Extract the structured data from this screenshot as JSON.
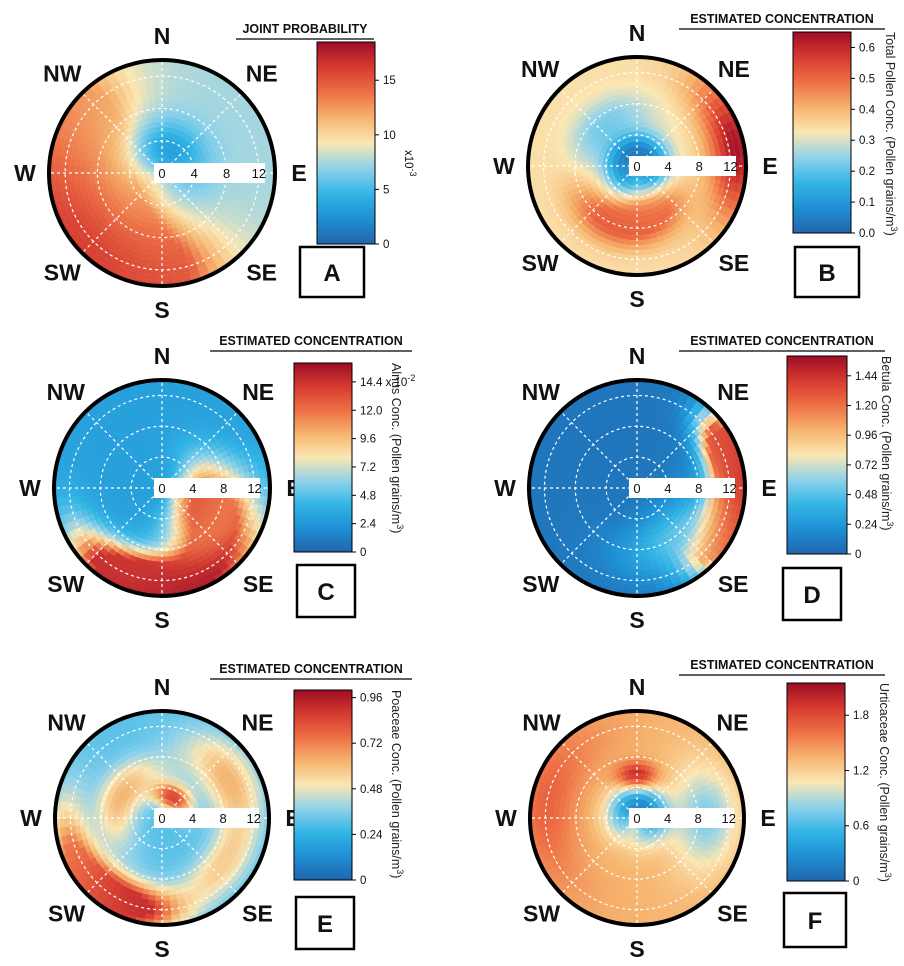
{
  "figure": {
    "panel_letters": [
      "A",
      "B",
      "C",
      "D",
      "E",
      "F"
    ]
  },
  "colormap": [
    "#2166ac",
    "#1f8fd4",
    "#33b5e5",
    "#8fd2ea",
    "#fbe7b4",
    "#f6b46e",
    "#ee7045",
    "#d63a30",
    "#9e0d26"
  ],
  "chart_data": [
    {
      "type": "heatmap",
      "subtype": "polar",
      "panel": "A",
      "title": "JOINT PROBABILITY",
      "colorbar_label": "",
      "multiplier_label": "x10",
      "multiplier_exp": "-3",
      "colorbar_ticks": [
        "0",
        "5",
        "10",
        "15"
      ],
      "colorbar_tick_values": [
        0,
        5,
        10,
        15
      ],
      "cmax": 18.5,
      "compass": {
        "N": "N",
        "NE": "NE",
        "E": "E",
        "SE": "SE",
        "S": "S",
        "SW": "SW",
        "W": "W",
        "NW": "NW"
      },
      "radial_ticks": [
        "0",
        "4",
        "8",
        "12"
      ],
      "radial_max": 14,
      "background_value": 0.4,
      "hotspots": [
        {
          "dir_deg": 225,
          "r": 13,
          "value": 0.97,
          "spread_deg": 38,
          "spread_r": 4.5
        },
        {
          "dir_deg": 265,
          "r": 12.5,
          "value": 0.82,
          "spread_deg": 35,
          "spread_r": 4
        },
        {
          "dir_deg": 190,
          "r": 12,
          "value": 0.74,
          "spread_deg": 30,
          "spread_r": 4
        },
        {
          "dir_deg": 240,
          "r": 6,
          "value": 0.62,
          "spread_deg": 45,
          "spread_r": 3
        },
        {
          "dir_deg": 300,
          "r": 11,
          "value": 0.58,
          "spread_deg": 30,
          "spread_r": 4
        },
        {
          "dir_deg": 20,
          "r": 3,
          "value": 0.18,
          "spread_deg": 60,
          "spread_r": 2.5
        }
      ]
    },
    {
      "type": "heatmap",
      "subtype": "polar",
      "panel": "B",
      "title": "ESTIMATED CONCENTRATION",
      "colorbar_label": "Total Pollen Conc. (Pollen grains/m",
      "colorbar_label_sup": "3",
      "colorbar_label_end": ")",
      "colorbar_ticks": [
        "0.0",
        "0.1",
        "0.2",
        "0.3",
        "0.4",
        "0.5",
        "0.6"
      ],
      "colorbar_tick_values": [
        0,
        0.1,
        0.2,
        0.3,
        0.4,
        0.5,
        0.6
      ],
      "cmax": 0.65,
      "compass": {
        "N": "N",
        "NE": "NE",
        "E": "E",
        "SE": "SE",
        "S": "S",
        "SW": "SW",
        "W": "W",
        "NW": "NW"
      },
      "radial_ticks": [
        "0",
        "4",
        "8",
        "12"
      ],
      "radial_max": 14,
      "background_value": 0.52,
      "hotspots": [
        {
          "dir_deg": 80,
          "r": 13,
          "value": 0.98,
          "spread_deg": 28,
          "spread_r": 2.5
        },
        {
          "dir_deg": 205,
          "r": 8,
          "value": 0.8,
          "spread_deg": 35,
          "spread_r": 2
        },
        {
          "dir_deg": 160,
          "r": 6,
          "value": 0.75,
          "spread_deg": 30,
          "spread_r": 2
        },
        {
          "dir_deg": 0,
          "r": 1.5,
          "value": 0.05,
          "spread_deg": 180,
          "spread_r": 2
        },
        {
          "dir_deg": 320,
          "r": 7,
          "value": 0.35,
          "spread_deg": 40,
          "spread_r": 2
        }
      ]
    },
    {
      "type": "heatmap",
      "subtype": "polar",
      "panel": "C",
      "title": "ESTIMATED CONCENTRATION",
      "colorbar_label": "Alnus Conc. (Pollen grains/m",
      "colorbar_label_sup": "3",
      "colorbar_label_end": ")",
      "colorbar_ticks": [
        "0",
        "2.4",
        "4.8",
        "7.2",
        "9.6",
        "12.0",
        "14.4 x 10"
      ],
      "colorbar_tick_values": [
        0,
        2.4,
        4.8,
        7.2,
        9.6,
        12.0,
        14.4
      ],
      "top_tick_exp": "-2",
      "cmax": 16,
      "compass": {
        "N": "N",
        "NE": "NE",
        "E": "E",
        "SE": "SE",
        "S": "S",
        "SW": "SW",
        "W": "W",
        "NW": "NW"
      },
      "radial_ticks": [
        "0",
        "4",
        "8",
        "12"
      ],
      "radial_max": 14,
      "background_value": 0.18,
      "hotspots": [
        {
          "dir_deg": 170,
          "r": 13,
          "value": 0.98,
          "spread_deg": 40,
          "spread_r": 2.5
        },
        {
          "dir_deg": 200,
          "r": 12,
          "value": 0.85,
          "spread_deg": 25,
          "spread_r": 2
        },
        {
          "dir_deg": 110,
          "r": 5,
          "value": 0.8,
          "spread_deg": 40,
          "spread_r": 2.5
        },
        {
          "dir_deg": 125,
          "r": 9,
          "value": 0.7,
          "spread_deg": 30,
          "spread_r": 2
        }
      ]
    },
    {
      "type": "heatmap",
      "subtype": "polar",
      "panel": "D",
      "title": "ESTIMATED CONCENTRATION",
      "colorbar_label": "Betula Conc. (Pollen grains/m",
      "colorbar_label_sup": "3",
      "colorbar_label_end": ")",
      "colorbar_ticks": [
        "0",
        "0.24",
        "0.48",
        "0.72",
        "0.96",
        "1.20",
        "1.44"
      ],
      "colorbar_tick_values": [
        0,
        0.24,
        0.48,
        0.72,
        0.96,
        1.2,
        1.44
      ],
      "cmax": 1.6,
      "compass": {
        "N": "N",
        "NE": "NE",
        "E": "E",
        "SE": "SE",
        "S": "S",
        "SW": "SW",
        "W": "W",
        "NW": "NW"
      },
      "radial_ticks": [
        "0",
        "4",
        "8",
        "12"
      ],
      "radial_max": 14,
      "background_value": 0.05,
      "hotspots": [
        {
          "dir_deg": 90,
          "r": 13,
          "value": 0.95,
          "spread_deg": 22,
          "spread_r": 2
        },
        {
          "dir_deg": 65,
          "r": 12.5,
          "value": 0.8,
          "spread_deg": 15,
          "spread_r": 2
        },
        {
          "dir_deg": 120,
          "r": 12.5,
          "value": 0.75,
          "spread_deg": 18,
          "spread_r": 2
        },
        {
          "dir_deg": 140,
          "r": 8,
          "value": 0.3,
          "spread_deg": 40,
          "spread_r": 3
        }
      ]
    },
    {
      "type": "heatmap",
      "subtype": "polar",
      "panel": "E",
      "title": "ESTIMATED CONCENTRATION",
      "colorbar_label": "Poaceae Conc. (Pollen grains/m",
      "colorbar_label_sup": "3",
      "colorbar_label_end": ")",
      "colorbar_ticks": [
        "0",
        "0.24",
        "0.48",
        "0.72",
        "0.96"
      ],
      "colorbar_tick_values": [
        0,
        0.24,
        0.48,
        0.72,
        0.96
      ],
      "cmax": 1.0,
      "compass": {
        "N": "N",
        "NE": "NE",
        "E": "E",
        "SE": "SE",
        "S": "S",
        "SW": "SW",
        "W": "W",
        "NW": "NW"
      },
      "radial_ticks": [
        "0",
        "4",
        "8",
        "12"
      ],
      "radial_max": 14,
      "background_value": 0.3,
      "hotspots": [
        {
          "dir_deg": 205,
          "r": 12,
          "value": 0.98,
          "spread_deg": 25,
          "spread_r": 2
        },
        {
          "dir_deg": 240,
          "r": 12.5,
          "value": 0.7,
          "spread_deg": 30,
          "spread_r": 2
        },
        {
          "dir_deg": 60,
          "r": 10,
          "value": 0.62,
          "spread_deg": 30,
          "spread_r": 2.5
        },
        {
          "dir_deg": 300,
          "r": 6,
          "value": 0.62,
          "spread_deg": 45,
          "spread_r": 2
        },
        {
          "dir_deg": 30,
          "r": 3,
          "value": 0.85,
          "spread_deg": 35,
          "spread_r": 1.2
        },
        {
          "dir_deg": 130,
          "r": 10,
          "value": 0.55,
          "spread_deg": 25,
          "spread_r": 2
        }
      ]
    },
    {
      "type": "heatmap",
      "subtype": "polar",
      "panel": "F",
      "title": "ESTIMATED CONCENTRATION",
      "colorbar_label": "Urticaceae Conc. (Pollen grains/m",
      "colorbar_label_sup": "3",
      "colorbar_label_end": ")",
      "colorbar_ticks": [
        "0",
        "0.6",
        "1.2",
        "1.8"
      ],
      "colorbar_tick_values": [
        0,
        0.6,
        1.2,
        1.8
      ],
      "cmax": 2.15,
      "compass": {
        "N": "N",
        "NE": "NE",
        "E": "E",
        "SE": "SE",
        "S": "S",
        "SW": "SW",
        "W": "W",
        "NW": "NW"
      },
      "radial_ticks": [
        "0",
        "4",
        "8",
        "12"
      ],
      "radial_max": 14,
      "background_value": 0.62,
      "hotspots": [
        {
          "dir_deg": 0,
          "r": 5.5,
          "value": 0.98,
          "spread_deg": 18,
          "spread_r": 1.2
        },
        {
          "dir_deg": 280,
          "r": 12,
          "value": 0.78,
          "spread_deg": 40,
          "spread_r": 3
        },
        {
          "dir_deg": 20,
          "r": 1.5,
          "value": 0.1,
          "spread_deg": 120,
          "spread_r": 2
        },
        {
          "dir_deg": 90,
          "r": 9,
          "value": 0.35,
          "spread_deg": 30,
          "spread_r": 3
        }
      ]
    }
  ]
}
